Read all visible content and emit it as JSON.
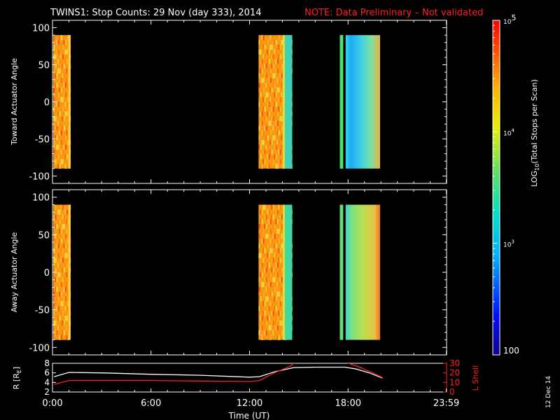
{
  "title": {
    "main": "TWINS1: Stop Counts: 29 Nov (day 333), 2014",
    "note": "NOTE: Data Preliminary – Not validated",
    "note_color": "#ff2020"
  },
  "datestamp": "12 Dec 14",
  "colors": {
    "accent_red": "#ff2020",
    "white": "#ffffff",
    "background": "#000000"
  },
  "chart_data": [
    {
      "type": "heatmap",
      "ylabel": "Toward Actuator Angle",
      "ylim": [
        -110,
        110
      ],
      "yticks": [
        -100,
        -50,
        0,
        50,
        100
      ],
      "xlim": [
        0,
        24
      ],
      "data_y_range": [
        -90,
        90
      ],
      "blocks": [
        {
          "x": [
            0.05,
            1.1
          ],
          "level": "high"
        },
        {
          "x": [
            12.55,
            14.6
          ],
          "level": "high"
        },
        {
          "x": [
            17.5,
            17.7
          ],
          "level": "mid"
        },
        {
          "x": [
            17.85,
            19.95
          ],
          "level": "mid"
        }
      ]
    },
    {
      "type": "heatmap",
      "ylabel": "Away Actuator Angle",
      "ylim": [
        -110,
        110
      ],
      "yticks": [
        -100,
        -50,
        0,
        50,
        100
      ],
      "xlim": [
        0,
        24
      ],
      "data_y_range": [
        -90,
        90
      ],
      "blocks": [
        {
          "x": [
            0.05,
            1.1
          ],
          "level": "high"
        },
        {
          "x": [
            12.55,
            14.6
          ],
          "level": "high"
        },
        {
          "x": [
            17.5,
            17.7
          ],
          "level": "mid"
        },
        {
          "x": [
            17.85,
            19.95
          ],
          "level": "mid"
        }
      ]
    },
    {
      "type": "line",
      "xlabel": "Time (UT)",
      "xticks": [
        0,
        6,
        12,
        18,
        23.983
      ],
      "xticklabels": [
        "0:00",
        "6:00",
        "12:00",
        "18:00",
        "23:59"
      ],
      "xlim": [
        0,
        24
      ],
      "ylabel_left": "R [R",
      "ylabel_left_sub": "E",
      "ylabel_left_end": "]",
      "ylim_left": [
        2,
        8
      ],
      "yticks_left": [
        2,
        4,
        6,
        8
      ],
      "ylabel_right": "L Shell",
      "ylim_right": [
        0,
        30
      ],
      "yticks_right": [
        0,
        10,
        20,
        30
      ],
      "series": [
        {
          "axis": "left",
          "color": "#ffffff",
          "x": [
            0.1,
            1,
            3,
            6,
            9,
            12,
            12.6,
            13.5,
            14.7,
            16,
            17.8,
            18.5,
            19.3,
            20.1
          ],
          "y": [
            5.2,
            6.1,
            6.0,
            5.7,
            5.5,
            5.1,
            5.2,
            6.2,
            7.1,
            7.2,
            7.2,
            6.8,
            6.0,
            4.9
          ]
        },
        {
          "axis": "right",
          "color": "#ff2020",
          "x": [
            0.1,
            1,
            3,
            6,
            9,
            12,
            12.6,
            13.5,
            14.5,
            14.8
          ],
          "y": [
            8,
            12,
            12,
            12,
            11.5,
            11,
            12,
            20,
            27,
            32
          ]
        },
        {
          "axis": "right",
          "color": "#ff2020",
          "x": [
            17.7,
            18.7,
            19.5,
            20.1
          ],
          "y": [
            32,
            26,
            20,
            15
          ]
        }
      ]
    },
    {
      "type": "colorbar",
      "scale": "log",
      "range": [
        100,
        100000
      ],
      "label_prefix": "LOG",
      "label_sub": "10",
      "label_suffix": "(Total Stops per Scan)",
      "ticks": [
        {
          "value": 100,
          "text": "100"
        },
        {
          "value": 1000,
          "base": "10",
          "exp": "3"
        },
        {
          "value": 10000,
          "base": "10",
          "exp": "4"
        },
        {
          "value": 100000,
          "base": "10",
          "exp": "5"
        }
      ]
    }
  ]
}
